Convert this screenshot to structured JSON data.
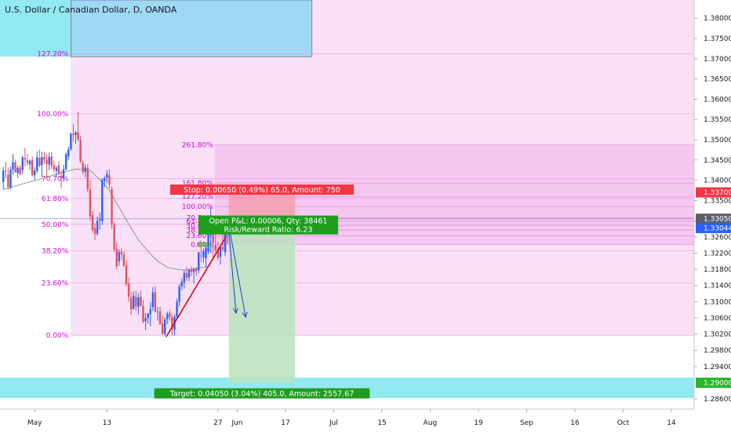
{
  "header": {
    "title": "U.S. Dollar / Canadian Dollar, D, OANDA"
  },
  "colors": {
    "bull": "#2962ff",
    "bear": "#e0525e",
    "fib_fill": "#f5c6f0",
    "fib_text": "#d400d4",
    "cyan_zone": "#7fe5f0",
    "blue_box": "#9fd8f5",
    "stop_fill": "#f49aa8",
    "target_fill": "#b9e3bd",
    "trend_line": "#e00000",
    "ma_line": "#8a9a8a",
    "arrow": "#1a3fc8",
    "green_box": "#2bb52b"
  },
  "chart_data": {
    "type": "candlestick",
    "symbol": "USDCAD",
    "ylim": [
      1.2835,
      1.3845
    ],
    "price_axis": {
      "ticks": [
        "1.38000",
        "1.37500",
        "1.37000",
        "1.36500",
        "1.36000",
        "1.35500",
        "1.35000",
        "1.34500",
        "1.34000",
        "1.33500",
        "1.33000",
        "1.32600",
        "1.32200",
        "1.31800",
        "1.31400",
        "1.31000",
        "1.30600",
        "1.30200",
        "1.29800",
        "1.29400",
        "1.28600"
      ],
      "tick_values": [
        1.38,
        1.375,
        1.37,
        1.365,
        1.36,
        1.355,
        1.35,
        1.345,
        1.34,
        1.335,
        1.33,
        1.326,
        1.322,
        1.318,
        1.314,
        1.31,
        1.306,
        1.302,
        1.298,
        1.294,
        1.286
      ],
      "badges": [
        {
          "label": "1.33700",
          "value": 1.337,
          "color": "#f23645"
        },
        {
          "label": "1.33050",
          "value": 1.3305,
          "color": "#5d606b"
        },
        {
          "label": "1.33044",
          "value": 1.3282,
          "color": "#2962ff"
        },
        {
          "label": "1.29000",
          "value": 1.29,
          "color": "#2bb52b"
        }
      ]
    },
    "time_axis": {
      "labels": [
        "May",
        "13",
        "27",
        "Jun",
        "17",
        "Jul",
        "15",
        "Aug",
        "19",
        "Sep",
        "16",
        "Oct",
        "14"
      ],
      "positions": [
        13,
        43,
        89,
        97,
        117,
        137,
        157,
        177,
        197,
        217,
        237,
        257,
        277
      ]
    },
    "candles": [
      [
        1.3396,
        1.3433,
        1.3377,
        1.3424
      ],
      [
        1.3423,
        1.3445,
        1.3404,
        1.3422
      ],
      [
        1.3414,
        1.3432,
        1.3378,
        1.3383
      ],
      [
        1.3381,
        1.3435,
        1.3377,
        1.3426
      ],
      [
        1.3426,
        1.3465,
        1.3414,
        1.3445
      ],
      [
        1.3444,
        1.3451,
        1.3418,
        1.342
      ],
      [
        1.3418,
        1.3436,
        1.3406,
        1.3431
      ],
      [
        1.3431,
        1.3438,
        1.3413,
        1.3414
      ],
      [
        1.3425,
        1.346,
        1.3415,
        1.3456
      ],
      [
        1.3455,
        1.348,
        1.3434,
        1.3451
      ],
      [
        1.3449,
        1.3465,
        1.3436,
        1.3443
      ],
      [
        1.3439,
        1.3452,
        1.3426,
        1.3448
      ],
      [
        1.345,
        1.3459,
        1.3409,
        1.3412
      ],
      [
        1.3413,
        1.3432,
        1.34,
        1.3424
      ],
      [
        1.3423,
        1.3471,
        1.3418,
        1.3457
      ],
      [
        1.3455,
        1.3476,
        1.3432,
        1.3436
      ],
      [
        1.3438,
        1.3471,
        1.3408,
        1.3457
      ],
      [
        1.3457,
        1.3469,
        1.3441,
        1.3451
      ],
      [
        1.3451,
        1.3464,
        1.3404,
        1.344
      ],
      [
        1.3439,
        1.3468,
        1.3425,
        1.3458
      ],
      [
        1.3459,
        1.347,
        1.3428,
        1.3436
      ],
      [
        1.3436,
        1.3448,
        1.3419,
        1.3427
      ],
      [
        1.3423,
        1.3435,
        1.3408,
        1.3431
      ],
      [
        1.3437,
        1.3447,
        1.3413,
        1.3417
      ],
      [
        1.3411,
        1.3425,
        1.338,
        1.3405
      ],
      [
        1.3405,
        1.3439,
        1.3396,
        1.3427
      ],
      [
        1.3427,
        1.3469,
        1.3424,
        1.3465
      ],
      [
        1.3458,
        1.3483,
        1.3449,
        1.3476
      ],
      [
        1.3476,
        1.3517,
        1.3473,
        1.3515
      ],
      [
        1.3515,
        1.3539,
        1.3495,
        1.3512
      ],
      [
        1.3512,
        1.3522,
        1.349,
        1.3518
      ],
      [
        1.3518,
        1.3568,
        1.3496,
        1.35
      ],
      [
        1.35,
        1.351,
        1.3442,
        1.3446
      ],
      [
        1.3444,
        1.3448,
        1.3415,
        1.342
      ],
      [
        1.3421,
        1.344,
        1.3407,
        1.3432
      ],
      [
        1.343,
        1.3439,
        1.337,
        1.3378
      ],
      [
        1.3377,
        1.34,
        1.33,
        1.3311
      ],
      [
        1.3314,
        1.3324,
        1.3272,
        1.3277
      ],
      [
        1.3282,
        1.3294,
        1.3252,
        1.3267
      ],
      [
        1.3268,
        1.3311,
        1.3263,
        1.33
      ],
      [
        1.3301,
        1.332,
        1.3279,
        1.3305
      ],
      [
        1.3299,
        1.3405,
        1.329,
        1.3401
      ],
      [
        1.3398,
        1.341,
        1.3383,
        1.3405
      ],
      [
        1.3406,
        1.3425,
        1.3393,
        1.3416
      ],
      [
        1.3412,
        1.3427,
        1.338,
        1.339
      ],
      [
        1.3378,
        1.3385,
        1.328,
        1.3291
      ],
      [
        1.329,
        1.3296,
        1.3223,
        1.323
      ],
      [
        1.3231,
        1.3246,
        1.318,
        1.3187
      ],
      [
        1.32,
        1.323,
        1.3189,
        1.3223
      ],
      [
        1.3223,
        1.3232,
        1.3203,
        1.3217
      ],
      [
        1.3217,
        1.3225,
        1.3186,
        1.3189
      ],
      [
        1.319,
        1.3202,
        1.3138,
        1.3143
      ],
      [
        1.3145,
        1.316,
        1.31,
        1.3112
      ],
      [
        1.311,
        1.3125,
        1.3068,
        1.3081
      ],
      [
        1.3082,
        1.3125,
        1.3081,
        1.3115
      ],
      [
        1.3112,
        1.3127,
        1.3077,
        1.3089
      ],
      [
        1.3087,
        1.3121,
        1.3069,
        1.3111
      ],
      [
        1.3112,
        1.3128,
        1.3089,
        1.309
      ],
      [
        1.309,
        1.3104,
        1.3047,
        1.305
      ],
      [
        1.3052,
        1.3072,
        1.303,
        1.306
      ],
      [
        1.306,
        1.3072,
        1.3046,
        1.3071
      ],
      [
        1.3069,
        1.3099,
        1.304,
        1.3082
      ],
      [
        1.3087,
        1.3136,
        1.3077,
        1.3123
      ],
      [
        1.3124,
        1.3139,
        1.3073,
        1.3076
      ],
      [
        1.3075,
        1.3088,
        1.3053,
        1.3076
      ],
      [
        1.3076,
        1.3088,
        1.3043,
        1.3045
      ],
      [
        1.3046,
        1.3065,
        1.3018,
        1.3021
      ],
      [
        1.302,
        1.3062,
        1.3016,
        1.3056
      ],
      [
        1.3057,
        1.3076,
        1.3045,
        1.307
      ],
      [
        1.3072,
        1.308,
        1.3053,
        1.3062
      ],
      [
        1.3061,
        1.3068,
        1.3017,
        1.3034
      ],
      [
        1.3031,
        1.3068,
        1.3017,
        1.3063
      ],
      [
        1.3063,
        1.3108,
        1.3056,
        1.31
      ],
      [
        1.3099,
        1.3144,
        1.3088,
        1.3138
      ],
      [
        1.3138,
        1.3157,
        1.3128,
        1.315
      ],
      [
        1.3148,
        1.3178,
        1.3133,
        1.3171
      ],
      [
        1.3171,
        1.3186,
        1.3152,
        1.3159
      ],
      [
        1.316,
        1.3183,
        1.3151,
        1.3178
      ],
      [
        1.3179,
        1.3187,
        1.3163,
        1.3174
      ],
      [
        1.3173,
        1.3184,
        1.3146,
        1.318
      ],
      [
        1.3181,
        1.3186,
        1.3164,
        1.3176
      ],
      [
        1.3178,
        1.3223,
        1.317,
        1.3222
      ],
      [
        1.3214,
        1.3251,
        1.3198,
        1.3212
      ],
      [
        1.321,
        1.3232,
        1.3196,
        1.3225
      ],
      [
        1.3208,
        1.324,
        1.3185,
        1.3233
      ],
      [
        1.3224,
        1.3283,
        1.3218,
        1.3269
      ],
      [
        1.3268,
        1.3335,
        1.3221,
        1.33
      ],
      [
        1.3306,
        1.3304,
        1.3202,
        1.3245
      ],
      [
        1.324,
        1.3271,
        1.3215,
        1.3227
      ],
      [
        1.323,
        1.3248,
        1.3204,
        1.3208
      ],
      [
        1.3211,
        1.324,
        1.3191,
        1.3236
      ],
      [
        1.3235,
        1.3268,
        1.3224,
        1.323
      ],
      [
        1.3222,
        1.3306,
        1.3212,
        1.3289
      ],
      [
        1.3278,
        1.33,
        1.3244,
        1.3296
      ]
    ],
    "moving_average": [
      [
        0,
        1.3377
      ],
      [
        8,
        1.3391
      ],
      [
        16,
        1.3404
      ],
      [
        24,
        1.3418
      ],
      [
        30,
        1.3428
      ],
      [
        36,
        1.3424
      ],
      [
        40,
        1.3402
      ],
      [
        44,
        1.3375
      ],
      [
        48,
        1.3333
      ],
      [
        52,
        1.3292
      ],
      [
        56,
        1.3253
      ],
      [
        60,
        1.3224
      ],
      [
        64,
        1.32
      ],
      [
        68,
        1.3185
      ],
      [
        72,
        1.318
      ],
      [
        76,
        1.3178
      ],
      [
        80,
        1.3182
      ],
      [
        84,
        1.3186
      ],
      [
        86,
        1.319
      ]
    ],
    "trend_line": [
      [
        67.5,
        1.3013
      ],
      [
        92.5,
        1.3262
      ]
    ],
    "fib_left": {
      "x_start": 28,
      "x_end": 270,
      "levels": [
        {
          "label": "0.00%",
          "value": 1.3017
        },
        {
          "label": "23.60%",
          "value": 1.3146
        },
        {
          "label": "38.20%",
          "value": 1.3226
        },
        {
          "label": "50.00%",
          "value": 1.3291
        },
        {
          "label": "61.80%",
          "value": 1.3355
        },
        {
          "label": "70.70%",
          "value": 1.3404
        },
        {
          "label": "100.00%",
          "value": 1.3564
        },
        {
          "label": "127.20%",
          "value": 1.3712
        }
      ]
    },
    "fib_right": {
      "x_start": 87.7,
      "x_end": 270,
      "levels": [
        {
          "label": "0.00%",
          "value": 1.3241
        },
        {
          "label": "23.60%",
          "value": 1.3263
        },
        {
          "label": "38.20%",
          "value": 1.3277
        },
        {
          "label": "50.00%",
          "value": 1.3288
        },
        {
          "label": "61.80%",
          "value": 1.3299
        },
        {
          "label": "70.70%",
          "value": 1.3307
        },
        {
          "label": "100.00%",
          "value": 1.3335
        },
        {
          "label": "127.20%",
          "value": 1.336
        },
        {
          "label": "161.80%",
          "value": 1.3393
        },
        {
          "label": "261.80%",
          "value": 1.3487
        }
      ]
    },
    "zones": {
      "top_box": {
        "x_start": 28,
        "x_end": 128,
        "top": 1.3845,
        "bottom": 1.3705
      },
      "cyan_left": {
        "x_start": 0,
        "x_end": 28,
        "top": 1.3845,
        "bottom": 1.3705
      },
      "support_band": {
        "x_start": 0,
        "x_end": 300,
        "top": 1.2913,
        "bottom": 1.2862
      }
    },
    "position": {
      "x_start": 93.5,
      "x_end": 121,
      "entry": 1.3305,
      "stop": 1.337,
      "target": 1.29,
      "stop_label": "Stop: 0.00650 (0.49%) 65.0, Amount: 750",
      "target_label": "Target: 0.04050 (3.04%) 405.0, Amount: 2557.67",
      "pnl_label": "Open P&L: 0.00006, Qty: 38461",
      "rr_label": "Risk/Reward Ratio: 6.23"
    },
    "arrows": [
      [
        [
          93.2,
          1.3295
        ],
        [
          96.5,
          1.3072
        ]
      ],
      [
        [
          93.3,
          1.3295
        ],
        [
          100.5,
          1.3062
        ]
      ]
    ]
  }
}
